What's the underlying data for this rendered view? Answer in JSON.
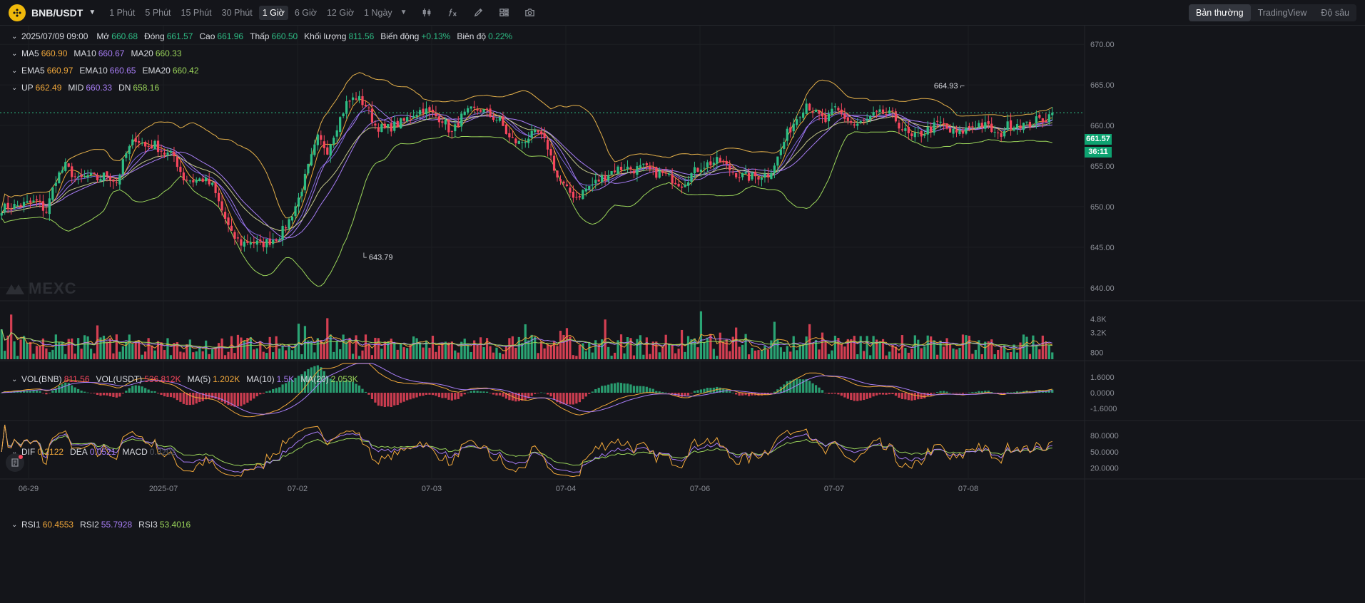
{
  "toolbar": {
    "symbol": "BNB/USDT",
    "timeframes": [
      "1 Phút",
      "5 Phút",
      "15 Phút",
      "30 Phút",
      "1 Giờ",
      "6 Giờ",
      "12 Giờ",
      "1 Ngày"
    ],
    "active_timeframe": "1 Giờ",
    "tools": [
      "candle-type-icon",
      "indicator-fx-icon",
      "draw-pencil-icon",
      "layout-grid-icon",
      "camera-icon"
    ],
    "views": [
      "Bản thường",
      "TradingView",
      "Độ sâu"
    ],
    "active_view": "Bản thường"
  },
  "ohlc": {
    "date": "2025/07/09 09:00",
    "open_label": "Mở",
    "open": "660.68",
    "close_label": "Đóng",
    "close": "661.57",
    "high_label": "Cao",
    "high": "661.96",
    "low_label": "Thấp",
    "low": "660.50",
    "volume_label": "Khối lượng",
    "volume": "811.56",
    "change_label": "Biến động",
    "change": "+0.13%",
    "amplitude_label": "Biên độ",
    "amplitude": "0.22%"
  },
  "ma": {
    "ma5_label": "MA5",
    "ma5": "660.90",
    "ma10_label": "MA10",
    "ma10": "660.67",
    "ma20_label": "MA20",
    "ma20": "660.33"
  },
  "ema": {
    "ema5_label": "EMA5",
    "ema5": "660.97",
    "ema10_label": "EMA10",
    "ema10": "660.65",
    "ema20_label": "EMA20",
    "ema20": "660.42"
  },
  "boll": {
    "up_label": "UP",
    "up": "662.49",
    "mid_label": "MID",
    "mid": "660.33",
    "dn_label": "DN",
    "dn": "658.16"
  },
  "vol": {
    "vol_bnb_label": "VOL(BNB)",
    "vol_bnb": "811.56",
    "vol_usdt_label": "VOL(USDT)",
    "vol_usdt": "536.812K",
    "ma5_label": "MA(5)",
    "ma5": "1.202K",
    "ma10_label": "MA(10)",
    "ma10": "1.5K",
    "ma20_label": "MA(20)",
    "ma20": "2.053K"
  },
  "macd": {
    "dif_label": "DIF",
    "dif": "0.2122",
    "dea_label": "DEA",
    "dea": "0.0521",
    "macd_label": "MACD",
    "macd": "0.3202"
  },
  "rsi": {
    "rsi1_label": "RSI1",
    "rsi1": "60.4553",
    "rsi2_label": "RSI2",
    "rsi2": "55.7928",
    "rsi3_label": "RSI3",
    "rsi3": "53.4016"
  },
  "watermark": "MEXC",
  "current_price": "661.57",
  "countdown": "36:11",
  "high_marker": "664.93",
  "low_marker": "643.79",
  "colors": {
    "up": "#2ebd85",
    "down": "#f6465d",
    "ma5": "#f0a73a",
    "ma10": "#a77df5",
    "ma20": "#9ad45a",
    "boll": "#e4b04a",
    "bg": "#14151a"
  },
  "chart_data": {
    "type": "candlestick",
    "price_axis": {
      "ticks": [
        "670.00",
        "665.00",
        "660.00",
        "655.00",
        "650.00",
        "645.00",
        "640.00"
      ],
      "range": [
        638.4,
        672.3
      ]
    },
    "volume_axis": {
      "ticks": [
        "4.8K",
        "3.2K",
        "800"
      ]
    },
    "macd_axis": {
      "ticks": [
        "1.6000",
        "0.0000",
        "-1.6000"
      ]
    },
    "rsi_axis": {
      "ticks": [
        "80.0000",
        "50.0000",
        "20.0000"
      ]
    },
    "x_labels": [
      "06-29",
      "2025-07",
      "07-02",
      "07-03",
      "07-04",
      "07-06",
      "07-07",
      "07-08"
    ],
    "price_path": [
      [
        0,
        649.8
      ],
      [
        6,
        650.2
      ],
      [
        11,
        650.6
      ],
      [
        14,
        649.4
      ],
      [
        17,
        653.5
      ],
      [
        20,
        655.0
      ],
      [
        24,
        653.2
      ],
      [
        27,
        653.8
      ],
      [
        30,
        653.4
      ],
      [
        33,
        654.0
      ],
      [
        36,
        653.0
      ],
      [
        39,
        656.5
      ],
      [
        42,
        658.5
      ],
      [
        45,
        657.4
      ],
      [
        48,
        657.6
      ],
      [
        51,
        656.6
      ],
      [
        54,
        656.2
      ],
      [
        57,
        653.5
      ],
      [
        60,
        653.2
      ],
      [
        63,
        653.4
      ],
      [
        66,
        652.5
      ],
      [
        69,
        649.5
      ],
      [
        72,
        646.5
      ],
      [
        75,
        645.5
      ],
      [
        78,
        645.8
      ],
      [
        81,
        645.3
      ],
      [
        84,
        645.8
      ],
      [
        87,
        646.4
      ],
      [
        90,
        648.3
      ],
      [
        93,
        651.0
      ],
      [
        96,
        654.8
      ],
      [
        99,
        658.4
      ],
      [
        102,
        657.0
      ],
      [
        105,
        660.0
      ],
      [
        108,
        662.7
      ],
      [
        111,
        663.5
      ],
      [
        114,
        662.5
      ],
      [
        117,
        660.0
      ],
      [
        120,
        659.5
      ],
      [
        123,
        660.0
      ],
      [
        126,
        660.5
      ],
      [
        129,
        661.5
      ],
      [
        132,
        662.0
      ],
      [
        135,
        661.3
      ],
      [
        138,
        660.8
      ],
      [
        141,
        659.0
      ],
      [
        144,
        661.0
      ],
      [
        147,
        661.8
      ],
      [
        150,
        662.0
      ],
      [
        153,
        661.2
      ],
      [
        156,
        660.6
      ],
      [
        159,
        658.4
      ],
      [
        162,
        657.8
      ],
      [
        165,
        658.6
      ],
      [
        168,
        659.0
      ],
      [
        171,
        657.4
      ],
      [
        174,
        653.6
      ],
      [
        177,
        652.0
      ],
      [
        180,
        651.2
      ],
      [
        183,
        652.2
      ],
      [
        186,
        653.0
      ],
      [
        189,
        653.8
      ],
      [
        192,
        654.6
      ],
      [
        195,
        654.8
      ],
      [
        198,
        654.6
      ],
      [
        201,
        654.8
      ],
      [
        204,
        654.2
      ],
      [
        207,
        654.0
      ],
      [
        210,
        653.4
      ],
      [
        213,
        652.8
      ],
      [
        216,
        654.0
      ],
      [
        219,
        655.0
      ],
      [
        222,
        655.4
      ],
      [
        225,
        655.6
      ],
      [
        228,
        654.6
      ],
      [
        231,
        653.9
      ],
      [
        234,
        653.6
      ],
      [
        237,
        653.8
      ],
      [
        240,
        654.0
      ],
      [
        243,
        656.0
      ],
      [
        246,
        659.0
      ],
      [
        249,
        661.0
      ],
      [
        252,
        662.8
      ],
      [
        255,
        661.4
      ],
      [
        258,
        660.5
      ],
      [
        261,
        662.0
      ],
      [
        264,
        661.0
      ],
      [
        267,
        660.0
      ],
      [
        270,
        660.4
      ],
      [
        273,
        661.2
      ],
      [
        276,
        661.5
      ],
      [
        279,
        661.2
      ],
      [
        282,
        659.6
      ],
      [
        285,
        658.4
      ],
      [
        288,
        659.0
      ],
      [
        291,
        659.7
      ],
      [
        294,
        660.3
      ],
      [
        297,
        659.2
      ],
      [
        300,
        659.0
      ],
      [
        303,
        659.8
      ],
      [
        306,
        660.2
      ],
      [
        309,
        659.8
      ],
      [
        312,
        658.6
      ],
      [
        315,
        660.0
      ],
      [
        318,
        660.3
      ],
      [
        321,
        660.0
      ],
      [
        324,
        660.6
      ],
      [
        327,
        660.9
      ],
      [
        329,
        661.57
      ]
    ],
    "total_candles": 330
  }
}
